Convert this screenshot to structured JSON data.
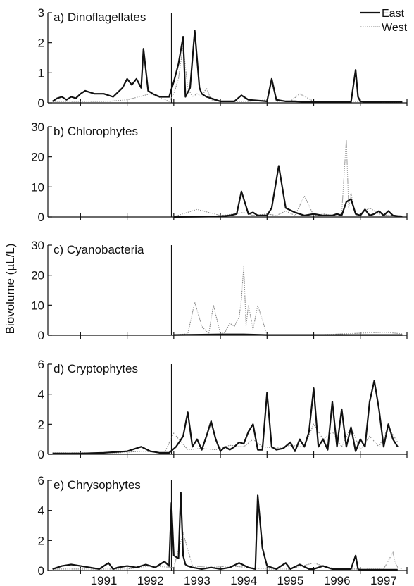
{
  "chart_data": {
    "type": "line",
    "ylabel": "Biovolume (µL/L)",
    "xlabel": "",
    "x_ticks": [
      "1991",
      "1992",
      "1993",
      "1994",
      "1995",
      "1996",
      "1997"
    ],
    "xlim": [
      1990.3,
      1998.0
    ],
    "divider_x": 1992.95,
    "grid": false,
    "legend": {
      "placement": "top-right",
      "entries": [
        {
          "name": "East",
          "style": "solid",
          "color": "#111111"
        },
        {
          "name": "West",
          "style": "dotted",
          "color": "#888888"
        }
      ]
    },
    "panels": [
      {
        "title": "a) Dinoflagellates",
        "ylim": [
          0,
          3
        ],
        "yticks": [
          "0",
          "1",
          "2",
          "3"
        ],
        "series": [
          {
            "name": "East",
            "x": [
              1990.4,
              1990.5,
              1990.6,
              1990.7,
              1990.8,
              1990.9,
              1991.0,
              1991.1,
              1991.2,
              1991.3,
              1991.5,
              1991.7,
              1991.9,
              1992.0,
              1992.1,
              1992.2,
              1992.3,
              1992.35,
              1992.45,
              1992.55,
              1992.7,
              1992.9,
              1993.0,
              1993.1,
              1993.2,
              1993.25,
              1993.35,
              1993.45,
              1993.55,
              1993.6,
              1993.7,
              1993.8,
              1994.0,
              1994.3,
              1994.45,
              1994.6,
              1995.0,
              1995.1,
              1995.2,
              1995.4,
              1995.6,
              1995.8,
              1996.0,
              1996.3,
              1996.5,
              1996.8,
              1996.9,
              1996.95,
              1997.0,
              1997.1,
              1997.5,
              1997.9
            ],
            "y": [
              0.05,
              0.15,
              0.2,
              0.1,
              0.2,
              0.15,
              0.3,
              0.4,
              0.35,
              0.3,
              0.3,
              0.2,
              0.5,
              0.8,
              0.6,
              0.8,
              0.5,
              1.8,
              0.4,
              0.3,
              0.2,
              0.2,
              0.7,
              1.3,
              2.2,
              0.2,
              0.5,
              2.4,
              0.5,
              0.3,
              0.2,
              0.15,
              0.05,
              0.05,
              0.25,
              0.1,
              0.05,
              0.8,
              0.1,
              0.05,
              0.05,
              0.03,
              0.03,
              0.03,
              0.03,
              0.02,
              1.1,
              0.2,
              0.05,
              0.03,
              0.03,
              0.03
            ]
          },
          {
            "name": "West",
            "x": [
              1990.4,
              1990.8,
              1991.2,
              1991.6,
              1992.0,
              1992.5,
              1992.9,
              1993.0,
              1993.1,
              1993.2,
              1993.3,
              1993.4,
              1993.5,
              1993.6,
              1993.7,
              1993.8,
              1994.0,
              1994.3,
              1994.6,
              1995.0,
              1995.1,
              1995.2,
              1995.5,
              1995.7,
              1996.0,
              1996.5,
              1997.0,
              1997.5,
              1997.9
            ],
            "y": [
              0.05,
              0.05,
              0.05,
              0.05,
              0.1,
              0.3,
              0.05,
              0.3,
              0.8,
              1.9,
              0.5,
              0.2,
              0.3,
              0.2,
              0.5,
              0.1,
              0.05,
              0.05,
              0.05,
              0.1,
              0.7,
              0.05,
              0.05,
              0.3,
              0.05,
              0.05,
              0.05,
              0.02,
              0.02
            ]
          }
        ]
      },
      {
        "title": "b) Chlorophytes",
        "ylim": [
          0,
          30
        ],
        "yticks": [
          "0",
          "10",
          "20",
          "30"
        ],
        "series": [
          {
            "name": "East",
            "x": [
              1993.0,
              1993.5,
              1994.0,
              1994.2,
              1994.35,
              1994.45,
              1994.6,
              1994.7,
              1994.8,
              1995.0,
              1995.1,
              1995.25,
              1995.4,
              1995.6,
              1995.8,
              1996.0,
              1996.2,
              1996.4,
              1996.5,
              1996.6,
              1996.7,
              1996.8,
              1996.9,
              1997.0,
              1997.1,
              1997.2,
              1997.3,
              1997.4,
              1997.5,
              1997.6,
              1997.7,
              1997.8,
              1997.9
            ],
            "y": [
              0,
              0.1,
              0.2,
              0.5,
              1,
              8.5,
              1,
              1.5,
              0.5,
              0.5,
              3,
              17,
              3,
              1.5,
              0.5,
              1,
              0.5,
              0.5,
              1,
              0.5,
              5,
              6,
              1,
              0.5,
              2.5,
              0.5,
              1,
              2,
              0.5,
              2,
              0.5,
              0.3,
              0.2
            ]
          },
          {
            "name": "West",
            "x": [
              1993.0,
              1993.5,
              1994.0,
              1994.3,
              1994.5,
              1994.7,
              1995.0,
              1995.2,
              1995.4,
              1995.6,
              1995.8,
              1996.0,
              1996.2,
              1996.4,
              1996.6,
              1996.7,
              1996.75,
              1996.8,
              1996.9,
              1997.0,
              1997.2,
              1997.4,
              1997.6,
              1997.8,
              1997.9
            ],
            "y": [
              0.1,
              2.5,
              0.5,
              1,
              1.5,
              0.5,
              1,
              0.5,
              2,
              0.5,
              7,
              0.5,
              1,
              0.5,
              1,
              26,
              3,
              8,
              0.5,
              1,
              3,
              1,
              0.5,
              0.3,
              0.2
            ]
          }
        ]
      },
      {
        "title": "c) Cyanobacteria",
        "ylim": [
          0,
          30
        ],
        "yticks": [
          "0",
          "10",
          "20",
          "30"
        ],
        "series": [
          {
            "name": "East",
            "x": [
              1993.0,
              1993.6,
              1994.0,
              1994.5,
              1995.0,
              1996.0,
              1997.0,
              1997.9
            ],
            "y": [
              0.1,
              0.2,
              0.3,
              0.3,
              0.1,
              0.1,
              0.1,
              0.1
            ]
          },
          {
            "name": "West",
            "x": [
              1993.0,
              1993.3,
              1993.45,
              1993.6,
              1993.75,
              1993.85,
              1994.0,
              1994.1,
              1994.2,
              1994.3,
              1994.4,
              1994.45,
              1994.5,
              1994.55,
              1994.6,
              1994.7,
              1994.8,
              1995.0,
              1996.0,
              1997.5,
              1997.9
            ],
            "y": [
              0.1,
              0.5,
              11,
              3,
              0.5,
              10,
              0.5,
              1,
              4,
              3,
              6,
              12,
              23,
              3,
              10,
              2,
              10,
              0.1,
              0.1,
              1,
              0.5
            ]
          }
        ]
      },
      {
        "title": "d) Cryptophytes",
        "ylim": [
          0,
          6
        ],
        "yticks": [
          "0",
          "2",
          "4",
          "6"
        ],
        "series": [
          {
            "name": "East",
            "x": [
              1990.4,
              1991.0,
              1991.5,
              1992.0,
              1992.3,
              1992.5,
              1992.7,
              1992.9,
              1993.05,
              1993.2,
              1993.3,
              1993.4,
              1993.5,
              1993.6,
              1993.7,
              1993.8,
              1993.9,
              1994.0,
              1994.1,
              1994.2,
              1994.3,
              1994.4,
              1994.5,
              1994.6,
              1994.7,
              1994.8,
              1994.9,
              1995.0,
              1995.1,
              1995.2,
              1995.35,
              1995.5,
              1995.6,
              1995.7,
              1995.8,
              1995.9,
              1996.0,
              1996.1,
              1996.2,
              1996.3,
              1996.4,
              1996.5,
              1996.6,
              1996.7,
              1996.8,
              1996.9,
              1997.0,
              1997.1,
              1997.2,
              1997.3,
              1997.4,
              1997.5,
              1997.6,
              1997.7,
              1997.8
            ],
            "y": [
              0.05,
              0.05,
              0.1,
              0.2,
              0.5,
              0.2,
              0.1,
              0.1,
              0.5,
              1.2,
              2.8,
              0.5,
              1,
              0.3,
              1.2,
              2.2,
              1,
              0.2,
              0.5,
              0.3,
              0.5,
              0.8,
              0.7,
              1.5,
              2,
              0.3,
              0.3,
              4.1,
              0.5,
              0.3,
              0.4,
              0.8,
              0.2,
              1,
              0.5,
              1.5,
              4.4,
              0.5,
              1,
              0.3,
              3.5,
              0.5,
              3,
              0.5,
              1.8,
              0.2,
              1,
              0.5,
              3.5,
              4.9,
              3,
              0.5,
              2,
              1,
              0.5
            ]
          },
          {
            "name": "West",
            "x": [
              1990.4,
              1990.8,
              1991.3,
              1991.8,
              1992.3,
              1992.8,
              1993.0,
              1993.3,
              1993.6,
              1993.9,
              1994.2,
              1994.5,
              1994.7,
              1994.9,
              1995.2,
              1995.5,
              1995.8,
              1996.0,
              1996.2,
              1996.4,
              1996.6,
              1996.8,
              1997.0,
              1997.2,
              1997.4,
              1997.6,
              1997.8
            ],
            "y": [
              0.1,
              0.1,
              0.1,
              0.1,
              0.2,
              0.1,
              1.4,
              0.3,
              0.4,
              0.3,
              0.6,
              0.5,
              1,
              0.5,
              0.4,
              0.6,
              0.5,
              2,
              1,
              1.5,
              0.5,
              1.8,
              0.3,
              1.2,
              0.5,
              1.8,
              0.8
            ]
          }
        ]
      },
      {
        "title": "e) Chrysophytes",
        "ylim": [
          0,
          6
        ],
        "yticks": [
          "0",
          "2",
          "4",
          "6"
        ],
        "series": [
          {
            "name": "East",
            "x": [
              1990.4,
              1990.6,
              1990.8,
              1991.0,
              1991.2,
              1991.4,
              1991.6,
              1991.7,
              1991.8,
              1992.0,
              1992.2,
              1992.4,
              1992.6,
              1992.8,
              1992.9,
              1992.95,
              1993.0,
              1993.1,
              1993.15,
              1993.2,
              1993.25,
              1993.3,
              1993.4,
              1993.6,
              1993.8,
              1994.0,
              1994.2,
              1994.4,
              1994.6,
              1994.75,
              1994.8,
              1994.9,
              1995.0,
              1995.2,
              1995.4,
              1995.5,
              1995.7,
              1995.9,
              1996.0,
              1996.2,
              1996.4,
              1996.6,
              1996.8,
              1996.9,
              1996.95,
              1997.0,
              1997.2,
              1997.5,
              1997.8
            ],
            "y": [
              0.1,
              0.3,
              0.4,
              0.3,
              0.2,
              0.1,
              0.5,
              0.1,
              0.2,
              0.3,
              0.2,
              0.4,
              0.2,
              0.6,
              0.3,
              4.5,
              1,
              0.8,
              5.2,
              1,
              0.4,
              0.3,
              0.2,
              0.1,
              0.2,
              0.1,
              0.2,
              0.5,
              0.2,
              0.1,
              5,
              1.5,
              0.3,
              0.1,
              0.5,
              0.1,
              0.4,
              0.1,
              0.1,
              0.3,
              0.1,
              0.1,
              0.1,
              1,
              0.1,
              0.05,
              0.05,
              0.05,
              0.05
            ]
          },
          {
            "name": "West",
            "x": [
              1990.4,
              1991.0,
              1991.6,
              1992.0,
              1992.5,
              1993.0,
              1993.2,
              1993.4,
              1993.8,
              1994.2,
              1994.6,
              1995.0,
              1995.5,
              1996.0,
              1996.3,
              1996.6,
              1997.0,
              1997.5,
              1997.7,
              1997.75,
              1997.8,
              1997.9
            ],
            "y": [
              0.1,
              0.1,
              0.1,
              0.1,
              0.3,
              0.2,
              2.5,
              0.3,
              0.2,
              0.3,
              0.2,
              0.1,
              0.1,
              0.5,
              0.2,
              0.1,
              0.1,
              0.1,
              1.2,
              0.5,
              0.2,
              0.1
            ]
          }
        ]
      }
    ]
  }
}
